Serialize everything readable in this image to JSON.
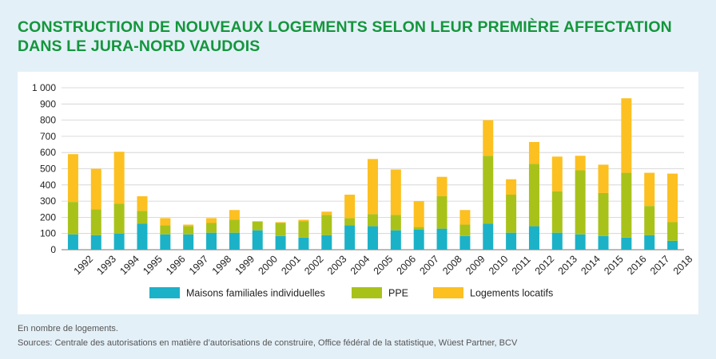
{
  "title_lines": [
    "CONSTRUCTION DE NOUVEAUX LOGEMENTS SELON LEUR PREMIÈRE AFFECTATION",
    "DANS LE JURA-NORD VAUDOIS"
  ],
  "footnote": "En nombre de logements.",
  "sources": "Sources: Centrale des autorisations en matière d’autorisations de construire, Office fédéral de la statistique, Wüest Partner, BCV",
  "colors": {
    "maisons": "#1bb2c8",
    "ppe": "#a9c21a",
    "locatifs": "#fcc021",
    "title": "#14963c",
    "background": "#e4f0f8"
  },
  "chart_data": {
    "type": "bar",
    "stacked": true,
    "categories": [
      "1992",
      "1993",
      "1994",
      "1995",
      "1996",
      "1997",
      "1998",
      "1999",
      "2000",
      "2001",
      "2002",
      "2003",
      "2004",
      "2005",
      "2006",
      "2007",
      "2008",
      "2009",
      "2010",
      "2011",
      "2012",
      "2013",
      "2014",
      "2015",
      "2016",
      "2017",
      "2018"
    ],
    "series": [
      {
        "name": "Maisons familiales individuelles",
        "color": "#1bb2c8",
        "values": [
          95,
          90,
          100,
          160,
          95,
          95,
          105,
          105,
          120,
          85,
          75,
          90,
          150,
          145,
          120,
          125,
          130,
          85,
          160,
          105,
          145,
          105,
          95,
          85,
          75,
          90,
          55
        ]
      },
      {
        "name": "PPE",
        "color": "#a9c21a",
        "values": [
          200,
          160,
          185,
          80,
          55,
          50,
          60,
          80,
          55,
          80,
          100,
          125,
          45,
          75,
          95,
          15,
          200,
          70,
          420,
          235,
          385,
          255,
          395,
          265,
          400,
          180,
          115
        ]
      },
      {
        "name": "Logements locatifs",
        "color": "#fcc021",
        "values": [
          295,
          250,
          320,
          90,
          45,
          10,
          30,
          60,
          0,
          5,
          10,
          20,
          145,
          340,
          280,
          160,
          120,
          90,
          220,
          95,
          135,
          215,
          90,
          175,
          460,
          205,
          300
        ]
      }
    ],
    "ylim": [
      0,
      1000
    ],
    "yticks": [
      0,
      100,
      200,
      300,
      400,
      500,
      600,
      700,
      800,
      900,
      1000
    ],
    "ytick_labels": [
      "0",
      "100",
      "200",
      "300",
      "400",
      "500",
      "600",
      "700",
      "800",
      "900",
      "1 000"
    ],
    "grid": true,
    "legend_position": "bottom"
  }
}
